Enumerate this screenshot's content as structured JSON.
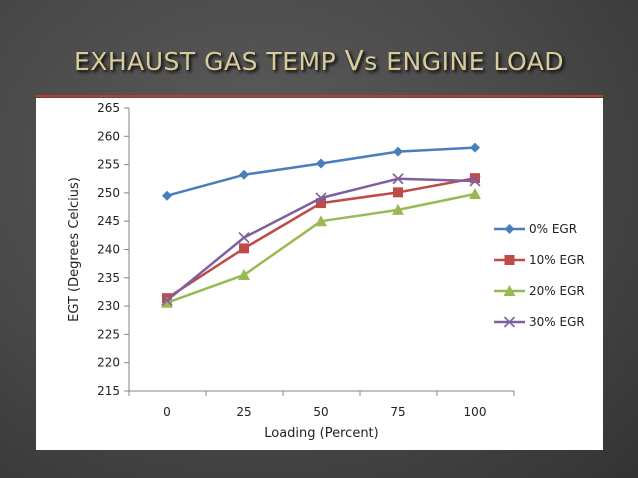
{
  "slide": {
    "title_part1": "EXHAUST GAS TEMP ",
    "title_v": "V",
    "title_s": "S",
    "title_part2": " ENGINE LOAD"
  },
  "chart_data": {
    "type": "line",
    "title": "EXHAUST GAS TEMP Vs ENGINE LOAD",
    "xlabel": "Loading (Percent)",
    "ylabel": "EGT  (Degrees Celcius)",
    "categories": [
      "0",
      "25",
      "50",
      "75",
      "100"
    ],
    "x": [
      0,
      25,
      50,
      75,
      100
    ],
    "ylim": [
      215,
      265
    ],
    "yticks": [
      215,
      220,
      225,
      230,
      235,
      240,
      245,
      250,
      255,
      260,
      265
    ],
    "grid": false,
    "legend_position": "right",
    "series": [
      {
        "name": "0% EGR",
        "color": "#4a7ebb",
        "marker": "diamond",
        "values": [
          249.5,
          253.2,
          255.2,
          257.3,
          258.0
        ]
      },
      {
        "name": "10% EGR",
        "color": "#be4b48",
        "marker": "square",
        "values": [
          231.4,
          240.2,
          248.2,
          250.1,
          252.6
        ]
      },
      {
        "name": "20% EGR",
        "color": "#98b954",
        "marker": "triangle",
        "values": [
          230.6,
          235.5,
          245.0,
          247.0,
          249.8
        ]
      },
      {
        "name": "30% EGR",
        "color": "#7d60a0",
        "marker": "x",
        "values": [
          231.0,
          242.1,
          249.1,
          252.5,
          252.1
        ]
      }
    ]
  }
}
